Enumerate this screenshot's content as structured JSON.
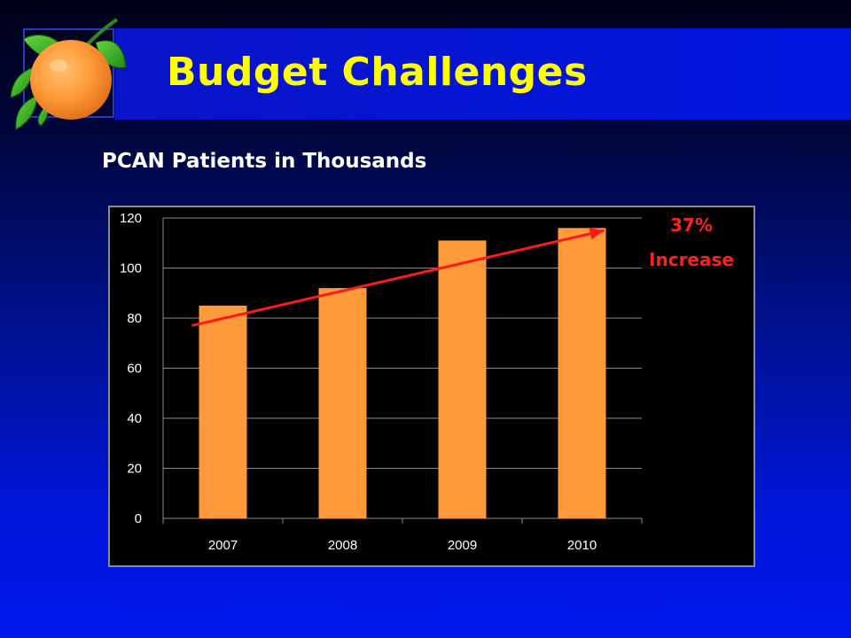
{
  "slide": {
    "title": "Budget Challenges",
    "subtitle": "PCAN Patients in Thousands",
    "logo_icon": "orange-with-leaves-icon"
  },
  "colors": {
    "title": "#ffff00",
    "bar": "#ff9a3a",
    "trend_line": "#ff1a1a",
    "annotation": "#ff2020",
    "chart_background": "#000000",
    "gridline": "#8c8c8c"
  },
  "chart_data": {
    "type": "bar",
    "categories": [
      "2007",
      "2008",
      "2009",
      "2010"
    ],
    "values": [
      85,
      92,
      111,
      116
    ],
    "ylim": [
      0,
      120
    ],
    "yticks": [
      0,
      20,
      40,
      60,
      80,
      100,
      120
    ],
    "grid": true,
    "legend": "none",
    "trend_line": {
      "from": [
        2007,
        77
      ],
      "to": [
        2010,
        115
      ]
    },
    "annotations": [
      "37%",
      "Increase"
    ]
  }
}
